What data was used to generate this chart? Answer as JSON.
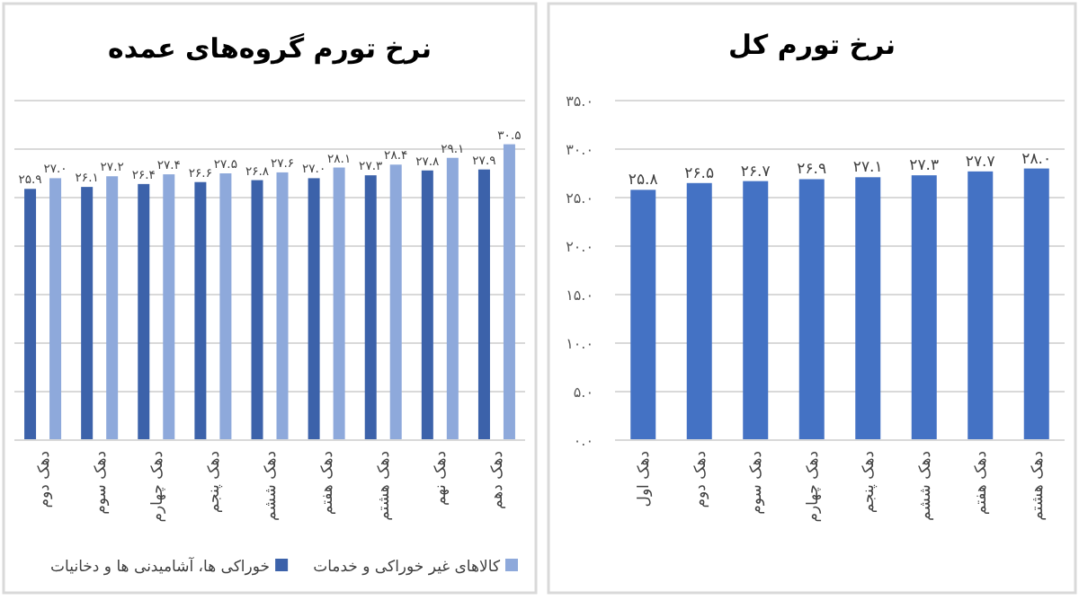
{
  "chart_data": [
    {
      "type": "bar",
      "title": "نرخ تورم گروه‌های عمده",
      "categories": [
        "دهک دوم",
        "دهک سوم",
        "دهک چهارم",
        "دهک پنجم",
        "دهک ششم",
        "دهک هفتم",
        "دهک هشتم",
        "دهک نهم",
        "دهک دهم"
      ],
      "series": [
        {
          "name": "خوراکی ها، آشامیدنی ها و دخانیات",
          "color": "#3c62aa",
          "values": [
            25.9,
            26.1,
            26.4,
            26.6,
            26.8,
            27.0,
            27.3,
            27.8,
            27.9
          ],
          "value_labels": [
            "۲۵.۹",
            "۲۶.۱",
            "۲۶.۴",
            "۲۶.۶",
            "۲۶.۸",
            "۲۷.۰",
            "۲۷.۳",
            "۲۷.۸",
            "۲۷.۹"
          ]
        },
        {
          "name": "کالاهای غیر خوراکی و خدمات",
          "color": "#8ea9db",
          "values": [
            27.0,
            27.2,
            27.4,
            27.5,
            27.6,
            28.1,
            28.4,
            29.1,
            30.5
          ],
          "value_labels": [
            "۲۷.۰",
            "۲۷.۲",
            "۲۷.۴",
            "۲۷.۵",
            "۲۷.۶",
            "۲۸.۱",
            "۲۸.۴",
            "۲۹.۱",
            "۳۰.۵"
          ]
        }
      ],
      "ylim": [
        0,
        35
      ],
      "yticks": [
        {
          "value": 0,
          "label": null
        },
        {
          "value": 5,
          "label": null
        },
        {
          "value": 10,
          "label": null
        },
        {
          "value": 15,
          "label": null
        },
        {
          "value": 20,
          "label": null
        },
        {
          "value": 25,
          "label": null
        },
        {
          "value": 30,
          "label": null
        },
        {
          "value": 35,
          "label": null
        }
      ],
      "tick_labels": "x",
      "grid": "y",
      "legend": "bottom"
    },
    {
      "type": "bar",
      "title": "نرخ تورم کل",
      "categories": [
        "دهک اول",
        "دهک دوم",
        "دهک سوم",
        "دهک چهارم",
        "دهک پنجم",
        "دهک ششم",
        "دهک هفتم",
        "دهک هشتم"
      ],
      "values": [
        25.8,
        26.5,
        26.7,
        26.9,
        27.1,
        27.3,
        27.7,
        28.0
      ],
      "color": "#4472c4",
      "value_labels": [
        "۲۵.۸",
        "۲۶.۵",
        "۲۶.۷",
        "۲۶.۹",
        "۲۷.۱",
        "۲۷.۳",
        "۲۷.۷",
        "۲۸.۰"
      ],
      "ylim": [
        0,
        35
      ],
      "yticks": [
        {
          "value": 0,
          "label": "۰.۰"
        },
        {
          "value": 5,
          "label": "۵.۰"
        },
        {
          "value": 10,
          "label": "۱۰.۰"
        },
        {
          "value": 15,
          "label": "۱۵.۰"
        },
        {
          "value": 20,
          "label": "۲۰.۰"
        },
        {
          "value": 25,
          "label": "۲۵.۰"
        },
        {
          "value": 30,
          "label": "۳۰.۰"
        },
        {
          "value": 35,
          "label": "۳۵.۰"
        }
      ],
      "grid": "y"
    }
  ]
}
